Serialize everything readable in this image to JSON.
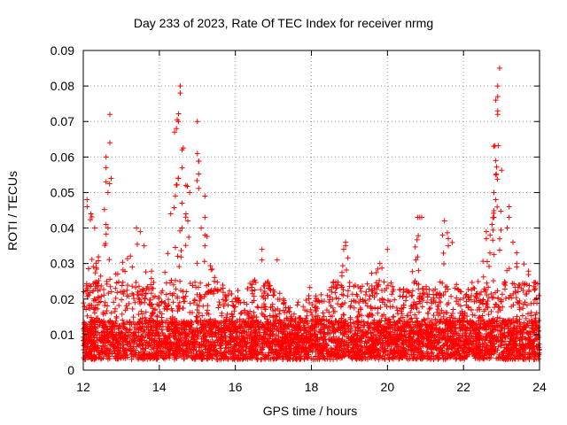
{
  "chart_data": {
    "type": "scatter",
    "title": "Day 233 of 2023, Rate Of TEC Index for receiver nrmg",
    "xlabel": "GPS time / hours",
    "ylabel": "ROTI / TECUs",
    "xlim": [
      12,
      24
    ],
    "ylim": [
      0,
      0.09
    ],
    "xticks": [
      "12",
      "14",
      "16",
      "18",
      "20",
      "22",
      "24"
    ],
    "yticks": [
      "0",
      "0.01",
      "0.02",
      "0.03",
      "0.04",
      "0.05",
      "0.06",
      "0.07",
      "0.08",
      "0.09"
    ],
    "grid": true,
    "marker": "+",
    "marker_color": "#ff0000",
    "envelope": [
      [
        12.0,
        0.032
      ],
      [
        12.1,
        0.048
      ],
      [
        12.2,
        0.045
      ],
      [
        12.3,
        0.04
      ],
      [
        12.4,
        0.036
      ],
      [
        12.5,
        0.034
      ],
      [
        12.6,
        0.06
      ],
      [
        12.7,
        0.072
      ],
      [
        12.8,
        0.036
      ],
      [
        12.9,
        0.035
      ],
      [
        13.0,
        0.032
      ],
      [
        13.1,
        0.033
      ],
      [
        13.2,
        0.034
      ],
      [
        13.3,
        0.033
      ],
      [
        13.4,
        0.04
      ],
      [
        13.5,
        0.04
      ],
      [
        13.6,
        0.032
      ],
      [
        13.7,
        0.03
      ],
      [
        13.8,
        0.028
      ],
      [
        13.9,
        0.02
      ],
      [
        14.0,
        0.018
      ],
      [
        14.1,
        0.028
      ],
      [
        14.2,
        0.044
      ],
      [
        14.3,
        0.056
      ],
      [
        14.4,
        0.067
      ],
      [
        14.5,
        0.077
      ],
      [
        14.6,
        0.08
      ],
      [
        14.7,
        0.056
      ],
      [
        14.8,
        0.05
      ],
      [
        14.9,
        0.044
      ],
      [
        15.0,
        0.07
      ],
      [
        15.1,
        0.04
      ],
      [
        15.2,
        0.049
      ],
      [
        15.3,
        0.032
      ],
      [
        15.4,
        0.03
      ],
      [
        15.5,
        0.024
      ],
      [
        15.6,
        0.022
      ],
      [
        15.8,
        0.022
      ],
      [
        16.0,
        0.02
      ],
      [
        16.2,
        0.02
      ],
      [
        16.4,
        0.022
      ],
      [
        16.6,
        0.031
      ],
      [
        16.7,
        0.034
      ],
      [
        16.8,
        0.027
      ],
      [
        17.0,
        0.03
      ],
      [
        17.2,
        0.018
      ],
      [
        17.4,
        0.016
      ],
      [
        17.6,
        0.017
      ],
      [
        17.8,
        0.018
      ],
      [
        18.0,
        0.021
      ],
      [
        18.2,
        0.019
      ],
      [
        18.4,
        0.022
      ],
      [
        18.6,
        0.024
      ],
      [
        18.8,
        0.03
      ],
      [
        18.9,
        0.036
      ],
      [
        19.0,
        0.034
      ],
      [
        19.2,
        0.026
      ],
      [
        19.4,
        0.027
      ],
      [
        19.6,
        0.029
      ],
      [
        19.8,
        0.029
      ],
      [
        20.0,
        0.033
      ],
      [
        20.2,
        0.022
      ],
      [
        20.4,
        0.023
      ],
      [
        20.6,
        0.022
      ],
      [
        20.8,
        0.043
      ],
      [
        20.9,
        0.043
      ],
      [
        21.0,
        0.022
      ],
      [
        21.2,
        0.021
      ],
      [
        21.4,
        0.026
      ],
      [
        21.5,
        0.036
      ],
      [
        21.6,
        0.042
      ],
      [
        21.7,
        0.037
      ],
      [
        21.8,
        0.024
      ],
      [
        22.0,
        0.019
      ],
      [
        22.2,
        0.023
      ],
      [
        22.4,
        0.024
      ],
      [
        22.6,
        0.038
      ],
      [
        22.7,
        0.04
      ],
      [
        22.8,
        0.063
      ],
      [
        22.9,
        0.085
      ],
      [
        23.0,
        0.06
      ],
      [
        23.1,
        0.046
      ],
      [
        23.2,
        0.046
      ],
      [
        23.3,
        0.042
      ],
      [
        23.4,
        0.032
      ],
      [
        23.5,
        0.03
      ],
      [
        23.6,
        0.032
      ],
      [
        23.7,
        0.028
      ],
      [
        23.8,
        0.028
      ],
      [
        23.9,
        0.024
      ],
      [
        24.0,
        0.02
      ]
    ],
    "points": [
      [
        12.1,
        0.048
      ],
      [
        12.1,
        0.046
      ],
      [
        12.2,
        0.044
      ],
      [
        12.3,
        0.04
      ],
      [
        12.6,
        0.06
      ],
      [
        12.6,
        0.057
      ],
      [
        12.6,
        0.053
      ],
      [
        12.65,
        0.05
      ],
      [
        12.7,
        0.072
      ],
      [
        12.7,
        0.064
      ],
      [
        12.6,
        0.041
      ],
      [
        12.65,
        0.04
      ],
      [
        13.4,
        0.04
      ],
      [
        13.5,
        0.039
      ],
      [
        13.6,
        0.035
      ],
      [
        14.3,
        0.044
      ],
      [
        14.4,
        0.067
      ],
      [
        14.45,
        0.068
      ],
      [
        14.5,
        0.07
      ],
      [
        14.55,
        0.08
      ],
      [
        14.55,
        0.078
      ],
      [
        14.6,
        0.062
      ],
      [
        14.6,
        0.057
      ],
      [
        14.5,
        0.054
      ],
      [
        14.7,
        0.052
      ],
      [
        14.8,
        0.05
      ],
      [
        14.6,
        0.047
      ],
      [
        14.7,
        0.044
      ],
      [
        14.6,
        0.04
      ],
      [
        14.75,
        0.042
      ],
      [
        15.0,
        0.07
      ],
      [
        15.0,
        0.061
      ],
      [
        15.2,
        0.049
      ],
      [
        15.2,
        0.043
      ],
      [
        15.1,
        0.04
      ],
      [
        15.2,
        0.038
      ],
      [
        15.2,
        0.035
      ],
      [
        16.7,
        0.034
      ],
      [
        16.7,
        0.031
      ],
      [
        17.1,
        0.031
      ],
      [
        18.9,
        0.036
      ],
      [
        18.9,
        0.035
      ],
      [
        18.85,
        0.034
      ],
      [
        20.0,
        0.034
      ],
      [
        19.8,
        0.03
      ],
      [
        20.8,
        0.043
      ],
      [
        20.85,
        0.043
      ],
      [
        20.9,
        0.043
      ],
      [
        20.75,
        0.031
      ],
      [
        21.5,
        0.042
      ],
      [
        21.6,
        0.037
      ],
      [
        21.6,
        0.035
      ],
      [
        21.45,
        0.038
      ],
      [
        22.6,
        0.039
      ],
      [
        22.6,
        0.037
      ],
      [
        22.8,
        0.063
      ],
      [
        22.85,
        0.059
      ],
      [
        22.85,
        0.055
      ],
      [
        22.8,
        0.05
      ],
      [
        22.85,
        0.048
      ],
      [
        22.9,
        0.072
      ],
      [
        22.9,
        0.073
      ],
      [
        22.85,
        0.076
      ],
      [
        22.9,
        0.077
      ],
      [
        22.9,
        0.08
      ],
      [
        22.95,
        0.085
      ],
      [
        22.8,
        0.043
      ],
      [
        22.75,
        0.041
      ],
      [
        22.7,
        0.038
      ],
      [
        23.2,
        0.046
      ],
      [
        23.2,
        0.043
      ],
      [
        23.15,
        0.04
      ],
      [
        23.3,
        0.036
      ],
      [
        23.4,
        0.033
      ],
      [
        23.4,
        0.03
      ]
    ]
  }
}
